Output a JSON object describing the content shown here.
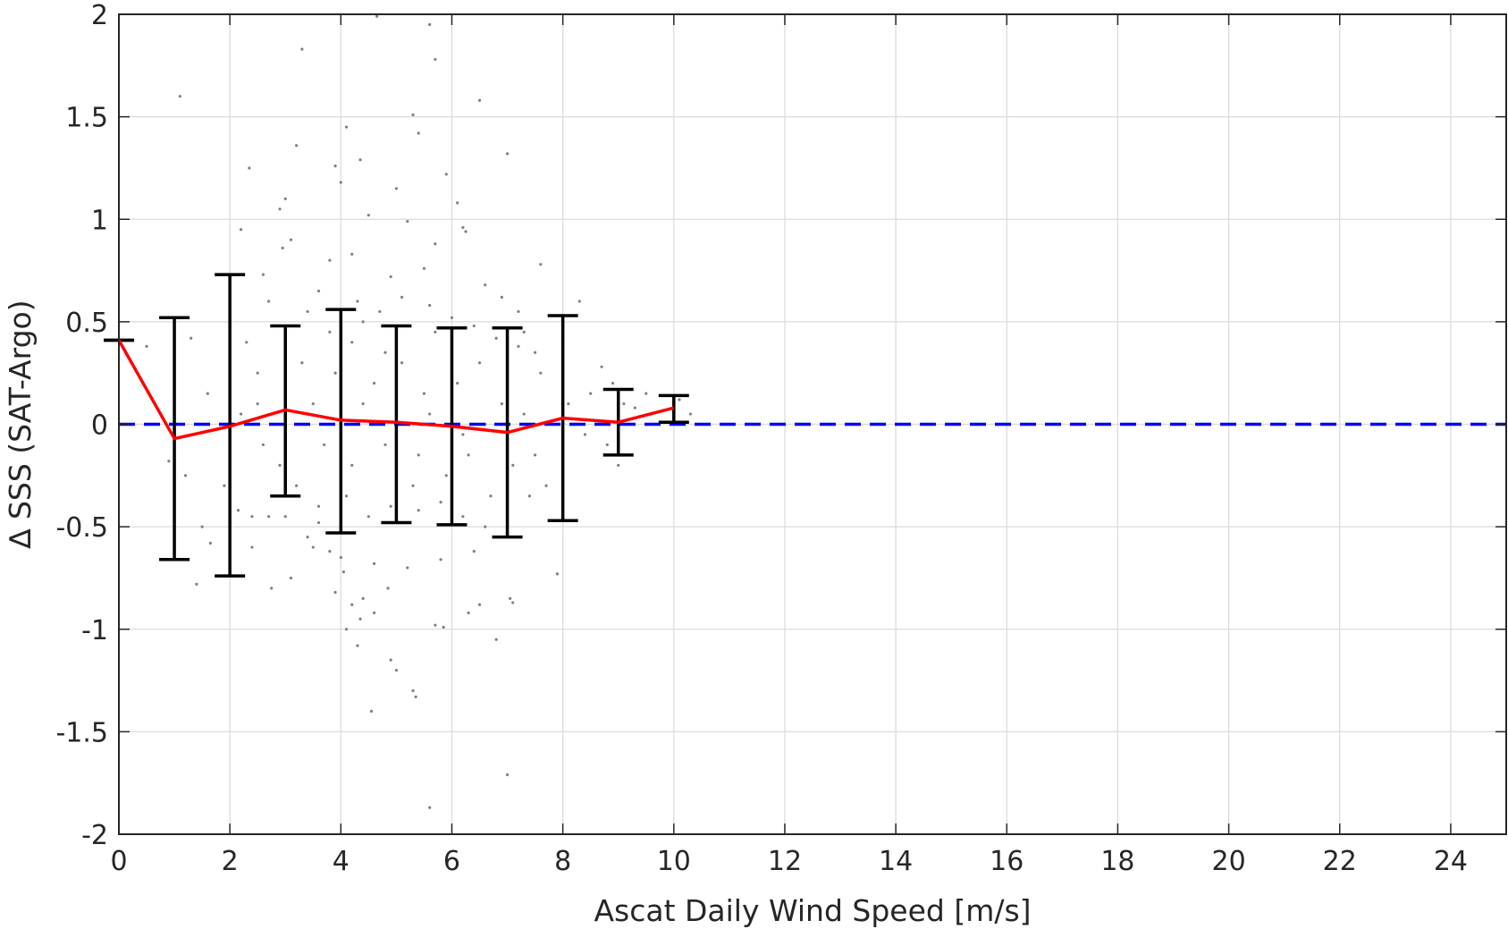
{
  "chart_data": {
    "type": "scatter",
    "title": "",
    "xlabel": "Ascat Daily Wind Speed [m/s]",
    "ylabel": "∆ SSS (SAT-Argo)",
    "xlim": [
      0,
      25
    ],
    "ylim": [
      -2,
      2
    ],
    "x_ticks": [
      "0",
      "2",
      "4",
      "6",
      "8",
      "10",
      "12",
      "14",
      "16",
      "18",
      "20",
      "22",
      "24"
    ],
    "y_ticks": [
      "2",
      "1.5",
      "1",
      "0.5",
      "0",
      "-0.5",
      "-1",
      "-1.5",
      "-2"
    ],
    "grid": true,
    "legend": "none",
    "reference_line": {
      "y": 0,
      "style": "dashed",
      "color": "#0000ff"
    },
    "series": [
      {
        "type": "line-with-errorbars",
        "color": "#ff0000",
        "errorbar_color": "#000000",
        "points": [
          {
            "x": 0,
            "y": 0.41,
            "lower": 0.41,
            "upper": 0.41
          },
          {
            "x": 1,
            "y": -0.07,
            "lower": -0.66,
            "upper": 0.52
          },
          {
            "x": 2,
            "y": -0.01,
            "lower": -0.74,
            "upper": 0.73
          },
          {
            "x": 3,
            "y": 0.07,
            "lower": -0.35,
            "upper": 0.48
          },
          {
            "x": 4,
            "y": 0.02,
            "lower": -0.53,
            "upper": 0.56
          },
          {
            "x": 5,
            "y": 0.01,
            "lower": -0.48,
            "upper": 0.48
          },
          {
            "x": 6,
            "y": -0.01,
            "lower": -0.49,
            "upper": 0.47
          },
          {
            "x": 7,
            "y": -0.04,
            "lower": -0.55,
            "upper": 0.47
          },
          {
            "x": 8,
            "y": 0.03,
            "lower": -0.47,
            "upper": 0.53
          },
          {
            "x": 9,
            "y": 0.01,
            "lower": -0.15,
            "upper": 0.17
          },
          {
            "x": 10,
            "y": 0.08,
            "lower": 0.01,
            "upper": 0.14
          }
        ]
      },
      {
        "type": "scatter",
        "color": "#808080",
        "points": [
          [
            4.65,
            1.99
          ],
          [
            5.6,
            1.95
          ],
          [
            3.3,
            1.83
          ],
          [
            5.7,
            1.78
          ],
          [
            1.1,
            1.6
          ],
          [
            6.5,
            1.58
          ],
          [
            5.3,
            1.51
          ],
          [
            4.1,
            1.45
          ],
          [
            5.4,
            1.42
          ],
          [
            3.2,
            1.36
          ],
          [
            7.0,
            1.32
          ],
          [
            4.35,
            1.29
          ],
          [
            3.9,
            1.26
          ],
          [
            2.35,
            1.25
          ],
          [
            5.9,
            1.22
          ],
          [
            4.0,
            1.18
          ],
          [
            5.0,
            1.15
          ],
          [
            3.0,
            1.1
          ],
          [
            6.1,
            1.08
          ],
          [
            2.9,
            1.05
          ],
          [
            4.5,
            1.02
          ],
          [
            5.2,
            0.99
          ],
          [
            6.2,
            0.96
          ],
          [
            6.25,
            0.94
          ],
          [
            2.2,
            0.95
          ],
          [
            3.1,
            0.9
          ],
          [
            2.95,
            0.86
          ],
          [
            5.7,
            0.88
          ],
          [
            4.2,
            0.83
          ],
          [
            3.8,
            0.8
          ],
          [
            7.6,
            0.78
          ],
          [
            5.5,
            0.76
          ],
          [
            2.6,
            0.73
          ],
          [
            4.9,
            0.72
          ],
          [
            1.3,
            0.42
          ],
          [
            0.5,
            0.38
          ],
          [
            1.6,
            0.15
          ],
          [
            2.5,
            0.25
          ],
          [
            0.9,
            -0.18
          ],
          [
            1.2,
            -0.25
          ],
          [
            1.5,
            -0.5
          ],
          [
            1.4,
            -0.78
          ],
          [
            1.65,
            -0.58
          ],
          [
            1.9,
            -0.3
          ],
          [
            2.15,
            -0.42
          ],
          [
            2.4,
            -0.6
          ],
          [
            2.7,
            -0.45
          ],
          [
            2.75,
            -0.8
          ],
          [
            3.1,
            -0.75
          ],
          [
            3.4,
            -0.55
          ],
          [
            3.6,
            -0.48
          ],
          [
            3.8,
            -0.62
          ],
          [
            3.9,
            -0.82
          ],
          [
            4.05,
            -0.72
          ],
          [
            4.2,
            -0.88
          ],
          [
            4.35,
            -0.95
          ],
          [
            4.1,
            -1.0
          ],
          [
            4.4,
            -0.85
          ],
          [
            4.6,
            -0.92
          ],
          [
            4.85,
            -0.8
          ],
          [
            4.3,
            -1.08
          ],
          [
            4.9,
            -1.15
          ],
          [
            5.0,
            -1.2
          ],
          [
            5.3,
            -1.3
          ],
          [
            5.35,
            -1.33
          ],
          [
            4.55,
            -1.4
          ],
          [
            5.7,
            -0.98
          ],
          [
            5.85,
            -0.99
          ],
          [
            6.3,
            -0.92
          ],
          [
            6.5,
            -0.88
          ],
          [
            6.8,
            -1.05
          ],
          [
            7.05,
            -0.85
          ],
          [
            7.1,
            -0.87
          ],
          [
            7.0,
            -1.71
          ],
          [
            5.6,
            -1.87
          ],
          [
            7.9,
            -0.73
          ],
          [
            8.3,
            0.6
          ],
          [
            8.0,
            0.4
          ],
          [
            9.0,
            -0.2
          ],
          [
            9.1,
            0.1
          ],
          [
            8.7,
            0.28
          ],
          [
            10.3,
            0.05
          ],
          [
            9.5,
            0.15
          ],
          [
            7.7,
            -0.3
          ],
          [
            7.5,
            0.35
          ],
          [
            7.3,
            0.45
          ],
          [
            6.9,
            0.62
          ],
          [
            7.2,
            0.55
          ],
          [
            6.6,
            0.68
          ],
          [
            3.4,
            0.55
          ],
          [
            3.6,
            0.65
          ],
          [
            2.8,
            0.48
          ],
          [
            2.5,
            0.1
          ],
          [
            2.6,
            -0.1
          ],
          [
            2.9,
            -0.2
          ],
          [
            3.0,
            0.2
          ],
          [
            3.3,
            0.3
          ],
          [
            3.5,
            0.1
          ],
          [
            3.7,
            -0.1
          ],
          [
            3.9,
            0.25
          ],
          [
            4.2,
            0.4
          ],
          [
            4.4,
            0.5
          ],
          [
            4.6,
            0.2
          ],
          [
            4.8,
            -0.1
          ],
          [
            5.1,
            0.3
          ],
          [
            5.3,
            -0.3
          ],
          [
            5.5,
            0.15
          ],
          [
            5.7,
            0.45
          ],
          [
            5.9,
            -0.25
          ],
          [
            6.1,
            0.2
          ],
          [
            6.3,
            -0.15
          ],
          [
            6.5,
            0.3
          ],
          [
            6.7,
            -0.35
          ],
          [
            6.9,
            0.1
          ],
          [
            7.1,
            -0.2
          ],
          [
            7.3,
            0.05
          ],
          [
            7.5,
            -0.15
          ],
          [
            3.2,
            -0.3
          ],
          [
            3.6,
            -0.4
          ],
          [
            4.1,
            -0.35
          ],
          [
            4.5,
            -0.45
          ],
          [
            4.9,
            -0.4
          ],
          [
            5.4,
            -0.42
          ],
          [
            5.8,
            -0.38
          ],
          [
            6.2,
            -0.45
          ],
          [
            6.6,
            -0.5
          ],
          [
            7.0,
            -0.45
          ],
          [
            3.8,
            0.45
          ],
          [
            4.3,
            0.6
          ],
          [
            4.7,
            0.55
          ],
          [
            5.1,
            0.62
          ],
          [
            5.6,
            0.58
          ],
          [
            6.0,
            0.52
          ],
          [
            6.4,
            0.48
          ],
          [
            6.8,
            0.42
          ],
          [
            7.2,
            0.38
          ],
          [
            7.6,
            0.25
          ],
          [
            3.5,
            -0.6
          ],
          [
            4.0,
            -0.65
          ],
          [
            4.6,
            -0.68
          ],
          [
            5.2,
            -0.7
          ],
          [
            5.8,
            -0.66
          ],
          [
            6.4,
            -0.62
          ],
          [
            2.3,
            0.4
          ],
          [
            2.7,
            0.6
          ],
          [
            2.4,
            -0.45
          ],
          [
            2.2,
            0.05
          ],
          [
            8.1,
            0.1
          ],
          [
            8.4,
            -0.05
          ],
          [
            8.5,
            0.15
          ],
          [
            8.8,
            -0.1
          ],
          [
            9.6,
            0.05
          ],
          [
            10.1,
            0.12
          ],
          [
            10.0,
            0.02
          ],
          [
            9.3,
            0.08
          ],
          [
            8.9,
            0.2
          ],
          [
            4.4,
            0.1
          ],
          [
            5.0,
            -0.05
          ],
          [
            5.6,
            0.05
          ],
          [
            6.2,
            -0.05
          ],
          [
            4.8,
            0.35
          ],
          [
            5.4,
            -0.15
          ],
          [
            6.0,
            0.1
          ],
          [
            6.6,
            0.0
          ],
          [
            4.2,
            -0.2
          ],
          [
            3.4,
            0.0
          ],
          [
            3.0,
            -0.45
          ],
          [
            7.4,
            -0.35
          ]
        ]
      }
    ]
  }
}
